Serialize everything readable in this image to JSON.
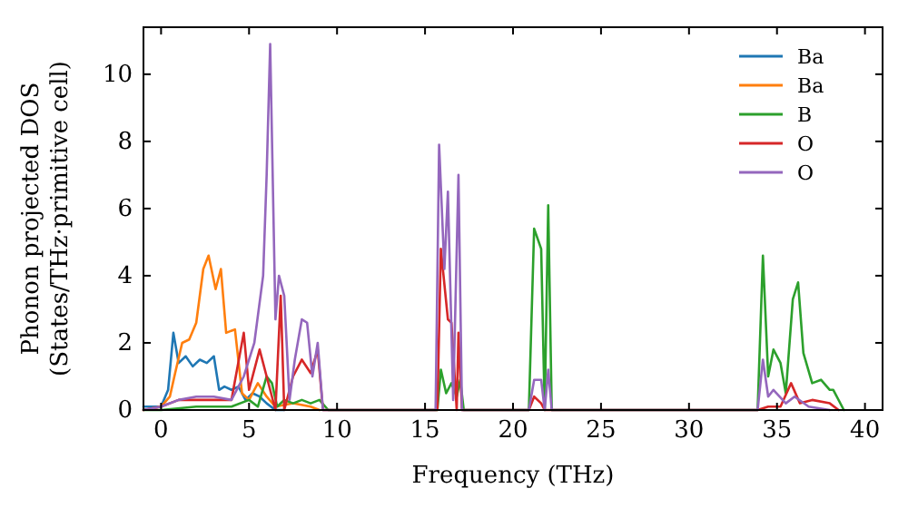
{
  "chart_data": {
    "type": "line",
    "xlabel": "Frequency (THz)",
    "ylabel": "Phonon projected DOS\n(States/THz·primitive cell)",
    "xlim": [
      -1,
      41
    ],
    "ylim": [
      0,
      11.4
    ],
    "xticks": [
      0,
      5,
      10,
      15,
      20,
      25,
      30,
      35,
      40
    ],
    "yticks": [
      0,
      2,
      4,
      6,
      8,
      10
    ],
    "grid": false,
    "legend": "top right",
    "series": [
      {
        "name": "Ba",
        "color": "#1f77b4",
        "x": [
          -1,
          0,
          0.4,
          0.7,
          1.0,
          1.4,
          1.8,
          2.2,
          2.6,
          3.0,
          3.3,
          3.6,
          4.0,
          4.4,
          4.8,
          5.2,
          5.6,
          6.0,
          6.5,
          7
        ],
        "values": [
          0.1,
          0.1,
          0.6,
          2.3,
          1.4,
          1.6,
          1.3,
          1.5,
          1.4,
          1.6,
          0.6,
          0.7,
          0.6,
          0.7,
          0.3,
          0.5,
          0.4,
          0.2,
          0,
          0
        ]
      },
      {
        "name": "Ba",
        "color": "#ff7f0e",
        "x": [
          -1,
          0,
          0.5,
          0.8,
          1.2,
          1.6,
          2.0,
          2.4,
          2.7,
          3.1,
          3.4,
          3.7,
          4.2,
          4.6,
          5.0,
          5.5,
          6.0,
          6.5,
          7.5,
          8.5,
          9
        ],
        "values": [
          0,
          0.1,
          0.4,
          1.1,
          2.0,
          2.1,
          2.6,
          4.2,
          4.6,
          3.6,
          4.2,
          2.3,
          2.4,
          0.5,
          0.3,
          0.8,
          0.4,
          0.1,
          0.2,
          0.1,
          0
        ]
      },
      {
        "name": "B",
        "color": "#2ca02c",
        "x": [
          -1,
          0,
          2,
          4,
          5.0,
          5.5,
          6.0,
          6.3,
          6.6,
          7.0,
          7.5,
          8.0,
          8.5,
          9.0,
          9.5,
          15.7,
          15.9,
          16.2,
          16.5,
          16.8,
          17.0,
          17.2,
          20.9,
          21.2,
          21.6,
          21.8,
          22.0,
          22.2,
          33.9,
          34.2,
          34.5,
          34.8,
          35.2,
          35.5,
          35.9,
          36.2,
          36.5,
          37.0,
          37.5,
          38.0,
          38.2,
          38.8
        ],
        "values": [
          0,
          0,
          0.1,
          0.1,
          0.3,
          0.1,
          1.0,
          0.8,
          0.1,
          0.3,
          0.2,
          0.3,
          0.2,
          0.3,
          0,
          0,
          1.2,
          0.5,
          0.8,
          0.4,
          0.9,
          0,
          0,
          5.4,
          4.8,
          0,
          6.1,
          0,
          0,
          4.6,
          1.0,
          1.8,
          1.4,
          0.5,
          3.3,
          3.8,
          1.7,
          0.8,
          0.9,
          0.6,
          0.6,
          0
        ]
      },
      {
        "name": "O",
        "color": "#d62728",
        "x": [
          -1,
          0,
          1,
          2,
          3,
          4,
          4.7,
          5.0,
          5.6,
          6.0,
          6.5,
          6.8,
          7.0,
          7.5,
          8.0,
          8.5,
          8.9,
          9.2,
          15.7,
          15.9,
          16.3,
          16.5,
          16.8,
          16.9,
          17.1,
          20.9,
          21.2,
          21.6,
          21.8,
          33.9,
          34.5,
          35.2,
          35.8,
          36.3,
          37.0,
          38.0,
          38.5
        ],
        "values": [
          0,
          0.1,
          0.3,
          0.3,
          0.3,
          0.3,
          2.3,
          0.6,
          1.8,
          1.0,
          0,
          3.4,
          0,
          1.0,
          1.5,
          1.1,
          1.8,
          0,
          0,
          4.8,
          2.7,
          2.6,
          0,
          2.3,
          0,
          0,
          0.4,
          0.2,
          0,
          0,
          0.1,
          0.1,
          0.8,
          0.2,
          0.3,
          0.2,
          0
        ]
      },
      {
        "name": "O",
        "color": "#9467bd",
        "x": [
          -1,
          0,
          1,
          2,
          3,
          4,
          4.7,
          5.3,
          5.8,
          6.0,
          6.2,
          6.5,
          6.7,
          7.0,
          7.3,
          7.6,
          8.0,
          8.3,
          8.6,
          8.9,
          9.2,
          15.6,
          15.8,
          16.1,
          16.3,
          16.6,
          16.9,
          17.1,
          20.9,
          21.2,
          21.6,
          21.8,
          22.0,
          22.2,
          33.9,
          34.2,
          34.5,
          34.8,
          35.5,
          36.0,
          36.8,
          38.0
        ],
        "values": [
          0,
          0.1,
          0.3,
          0.4,
          0.4,
          0.3,
          1.0,
          2.0,
          4.0,
          7.0,
          10.9,
          2.7,
          4.0,
          3.4,
          0.3,
          1.5,
          2.7,
          2.6,
          1.0,
          2.0,
          0,
          0,
          7.9,
          4.2,
          6.5,
          0.3,
          7.0,
          0,
          0,
          0.9,
          0.9,
          0,
          1.2,
          0,
          0,
          1.5,
          0.4,
          0.6,
          0.2,
          0.4,
          0.1,
          0
        ]
      }
    ]
  }
}
